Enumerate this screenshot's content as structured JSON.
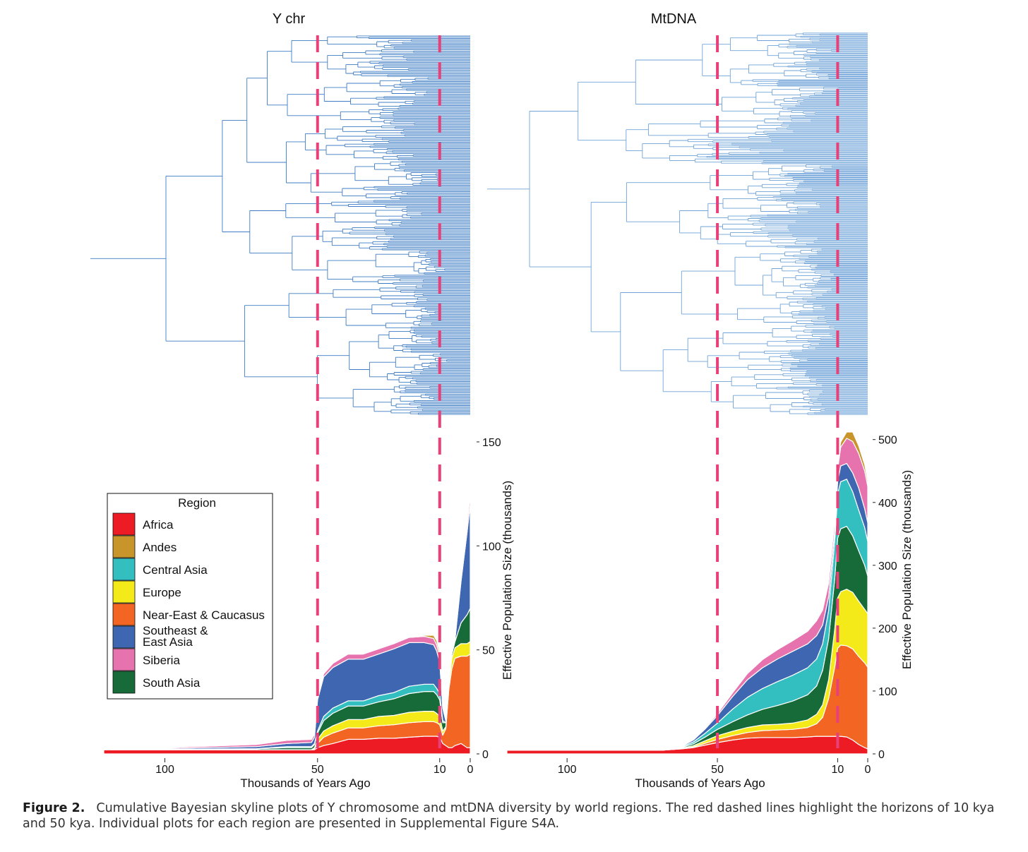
{
  "figure": {
    "caption_label": "Figure 2.",
    "caption_text": "Cumulative Bayesian skyline plots of Y chromosome and mtDNA diversity by world regions. The red dashed lines highlight the horizons of 10 kya and 50 kya. Individual plots for each region are presented in Supplemental Figure S4A."
  },
  "colors": {
    "tree": "#3d7cc4",
    "tree_light": "#6fa3d8",
    "horizon_line": "#e8417a"
  },
  "legend": {
    "title": "Region",
    "items": [
      {
        "label": "Africa",
        "color": "#ed1c24"
      },
      {
        "label": "Andes",
        "color": "#c8952b"
      },
      {
        "label": "Central Asia",
        "color": "#33bec0"
      },
      {
        "label": "Europe",
        "color": "#f4ea1a"
      },
      {
        "label": "Near-East & Caucasus",
        "color": "#f26522"
      },
      {
        "label": "Southeast & East Asia",
        "color": "#3f67b1"
      },
      {
        "label": "Siberia",
        "color": "#e673ae"
      },
      {
        "label": "South Asia",
        "color": "#176b38"
      }
    ]
  },
  "chart_data": [
    {
      "type": "area",
      "panel": "Y chr",
      "title": "Y chr",
      "xlabel": "Thousands of Years Ago",
      "ylabel": "Effective Population Size (thousands)",
      "xlim": [
        120,
        0
      ],
      "ylim": [
        0,
        150
      ],
      "x_ticks": [
        100,
        50,
        10,
        0
      ],
      "y_ticks": [
        0,
        50,
        100,
        150
      ],
      "horizons_kya": [
        10,
        50
      ],
      "stacked": true,
      "stack_order": [
        "Africa",
        "Near-East & Caucasus",
        "Europe",
        "South Asia",
        "Central Asia",
        "Southeast & East Asia",
        "Siberia",
        "Andes"
      ],
      "x": [
        120,
        70,
        60,
        52,
        51,
        50,
        48,
        45,
        40,
        35,
        30,
        25,
        20,
        15,
        12,
        11,
        10,
        9,
        8,
        7,
        6,
        5,
        3,
        1,
        0
      ],
      "series": [
        {
          "name": "Africa",
          "values": [
            2,
            2,
            2,
            2,
            2,
            3,
            4,
            5,
            7,
            7,
            7.5,
            7.5,
            8,
            8.5,
            8.5,
            8.5,
            8,
            5,
            4,
            3,
            3,
            4,
            5,
            3,
            3
          ]
        },
        {
          "name": "Near-East & Caucasus",
          "values": [
            0,
            0,
            0,
            0,
            0.5,
            2,
            4,
            5,
            5.5,
            5.5,
            6,
            6.5,
            7,
            7,
            7,
            6.5,
            6,
            4,
            8,
            28,
            38,
            42,
            42,
            44,
            45
          ]
        },
        {
          "name": "Europe",
          "values": [
            0,
            0,
            0,
            0,
            0.5,
            2,
            3,
            3.5,
            4,
            4,
            4.5,
            4.5,
            5,
            5,
            5,
            4.5,
            4,
            2,
            1,
            3,
            5,
            5,
            6,
            6,
            6
          ]
        },
        {
          "name": "South Asia",
          "values": [
            0,
            0.5,
            1,
            1,
            1.5,
            3,
            5,
            6,
            6.5,
            6.5,
            7,
            8,
            9,
            9.5,
            9.5,
            9,
            8,
            4,
            2,
            2,
            2,
            3,
            10,
            14,
            16
          ]
        },
        {
          "name": "Central Asia",
          "values": [
            0,
            0,
            0.5,
            0.5,
            0.5,
            1,
            2,
            2.5,
            2.5,
            2.5,
            3,
            3,
            3.5,
            3.5,
            3.5,
            3,
            3,
            1,
            0,
            0,
            0,
            0,
            0,
            0,
            0
          ]
        },
        {
          "name": "Southeast & East Asia",
          "values": [
            0,
            1,
            1.5,
            2,
            3,
            15,
            19,
            19.5,
            20,
            20,
            20,
            21,
            21,
            20,
            19,
            18,
            15,
            6,
            1,
            1,
            1,
            1,
            20,
            40,
            50
          ]
        },
        {
          "name": "Siberia",
          "values": [
            0,
            1,
            1.5,
            1.5,
            1.5,
            1.5,
            1.5,
            2,
            2.5,
            2.5,
            2.5,
            2.5,
            2.5,
            3,
            3,
            3,
            3,
            1,
            0,
            0,
            0,
            0,
            3,
            4,
            5
          ]
        },
        {
          "name": "Andes",
          "values": [
            0,
            0,
            0,
            0,
            0,
            0,
            0,
            0,
            0,
            0,
            0,
            0,
            0,
            0.5,
            1.5,
            2,
            2,
            1,
            0,
            0,
            0,
            0,
            0,
            1,
            2
          ]
        }
      ]
    },
    {
      "type": "area",
      "panel": "MtDNA",
      "title": "MtDNA",
      "xlabel": "Thousands of Years Ago",
      "ylabel": "Effective Population Size (thousands)",
      "xlim": [
        120,
        0
      ],
      "ylim": [
        0,
        530
      ],
      "x_ticks": [
        100,
        50,
        10,
        0
      ],
      "y_ticks": [
        0,
        100,
        200,
        300,
        400,
        500
      ],
      "horizons_kya": [
        10,
        50
      ],
      "stacked": true,
      "stack_order": [
        "Africa",
        "Near-East & Caucasus",
        "Europe",
        "South Asia",
        "Central Asia",
        "Southeast & East Asia",
        "Siberia",
        "Andes"
      ],
      "x": [
        120,
        68,
        62,
        58,
        54,
        50,
        45,
        40,
        35,
        30,
        25,
        20,
        17,
        15,
        13,
        11,
        10,
        9,
        7,
        5,
        3,
        1,
        0
      ],
      "series": [
        {
          "name": "Africa",
          "values": [
            6,
            6,
            8,
            10,
            14,
            18,
            22,
            25,
            26,
            26,
            26,
            27,
            28,
            28,
            28,
            28,
            28,
            28,
            27,
            22,
            15,
            10,
            8
          ]
        },
        {
          "name": "Near-East & Caucasus",
          "values": [
            0,
            0,
            0,
            1,
            3,
            5,
            7,
            9,
            11,
            12,
            13,
            15,
            20,
            30,
            60,
            110,
            140,
            145,
            145,
            145,
            140,
            135,
            130
          ]
        },
        {
          "name": "Europe",
          "values": [
            0,
            0,
            1,
            2,
            4,
            6,
            7,
            8,
            9,
            9,
            10,
            12,
            15,
            20,
            30,
            60,
            80,
            85,
            90,
            90,
            88,
            85,
            85
          ]
        },
        {
          "name": "South Asia",
          "values": [
            0,
            0,
            1,
            3,
            6,
            10,
            15,
            20,
            25,
            30,
            35,
            40,
            45,
            55,
            65,
            80,
            95,
            100,
            100,
            90,
            80,
            70,
            60
          ]
        },
        {
          "name": "Central Asia",
          "values": [
            0,
            0,
            1,
            3,
            6,
            10,
            20,
            28,
            33,
            38,
            41,
            43,
            43,
            42,
            45,
            60,
            70,
            75,
            75,
            70,
            65,
            60,
            55
          ]
        },
        {
          "name": "Southeast & East Asia",
          "values": [
            0,
            0,
            1,
            3,
            7,
            12,
            20,
            28,
            33,
            36,
            38,
            38,
            37,
            30,
            22,
            17,
            20,
            25,
            25,
            30,
            35,
            30,
            30
          ]
        },
        {
          "name": "Siberia",
          "values": [
            0,
            0,
            0.5,
            1,
            2,
            3,
            6,
            10,
            13,
            15,
            17,
            20,
            24,
            24,
            22,
            18,
            20,
            30,
            40,
            50,
            55,
            60,
            58
          ]
        },
        {
          "name": "Andes",
          "values": [
            0,
            0,
            0,
            0,
            0,
            0,
            0,
            0,
            0,
            0,
            0,
            0,
            0,
            1,
            2,
            3,
            5,
            8,
            10,
            15,
            12,
            10,
            8
          ]
        }
      ]
    }
  ]
}
